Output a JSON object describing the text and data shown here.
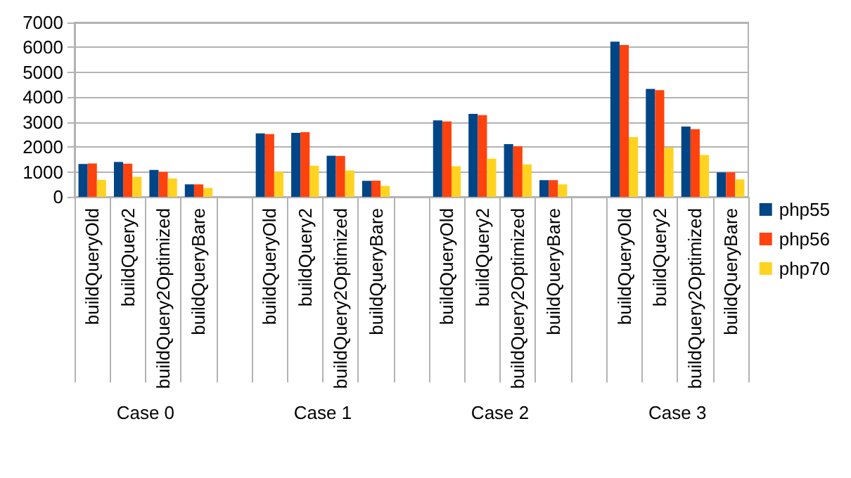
{
  "chart_data": {
    "type": "bar",
    "categories": [
      "buildQueryOld",
      "buildQuery2",
      "buildQuery2Optimized",
      "buildQueryBare",
      null,
      "buildQueryOld",
      "buildQuery2",
      "buildQuery2Optimized",
      "buildQueryBare",
      null,
      "buildQueryOld",
      "buildQuery2",
      "buildQuery2Optimized",
      "buildQueryBare",
      null,
      "buildQueryOld",
      "buildQuery2",
      "buildQuery2Optimized",
      "buildQueryBare"
    ],
    "series": [
      {
        "name": "php55",
        "color": "#004586",
        "values": [
          1320,
          1400,
          1080,
          500,
          null,
          2550,
          2570,
          1650,
          640,
          null,
          3070,
          3330,
          2120,
          670,
          null,
          6230,
          4330,
          2820,
          980
        ]
      },
      {
        "name": "php56",
        "color": "#ff420e",
        "values": [
          1340,
          1330,
          1000,
          500,
          null,
          2520,
          2600,
          1640,
          650,
          null,
          3030,
          3280,
          2030,
          670,
          null,
          6100,
          4280,
          2720,
          980
        ]
      },
      {
        "name": "php70",
        "color": "#ffd320",
        "values": [
          680,
          800,
          740,
          360,
          null,
          1000,
          1250,
          1060,
          440,
          null,
          1230,
          1530,
          1300,
          500,
          null,
          2400,
          1980,
          1680,
          700
        ]
      }
    ],
    "annotations": [
      "Case 0",
      "Case 1",
      "Case 2",
      "Case 3"
    ],
    "ylim": [
      0,
      7000
    ],
    "yticks": [
      0,
      1000,
      2000,
      3000,
      4000,
      5000,
      6000,
      7000
    ],
    "grid": "y",
    "legend": "right"
  }
}
